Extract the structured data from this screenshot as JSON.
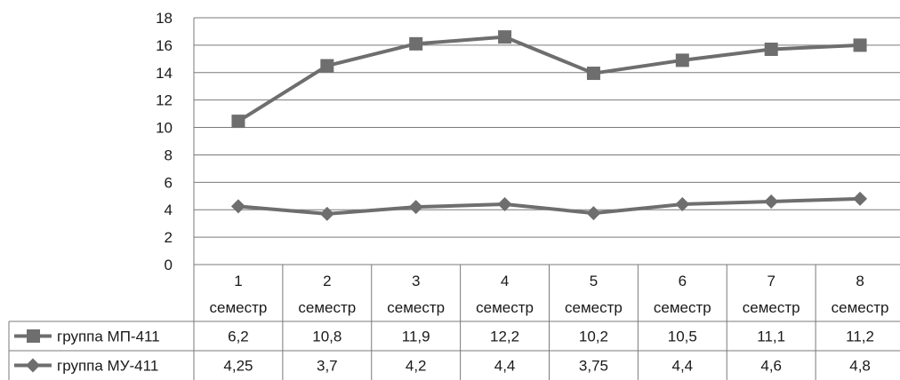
{
  "chart_data": {
    "type": "line",
    "categories": [
      [
        "1",
        "семестр"
      ],
      [
        "2",
        "семестр"
      ],
      [
        "3",
        "семестр"
      ],
      [
        "4",
        "семестр"
      ],
      [
        "5",
        "семестр"
      ],
      [
        "6",
        "семестр"
      ],
      [
        "7",
        "семестр"
      ],
      [
        "8",
        "семестр"
      ]
    ],
    "ylim": [
      0,
      18
    ],
    "yticks": [
      "0",
      "2",
      "4",
      "6",
      "8",
      "10",
      "12",
      "14",
      "16",
      "18"
    ],
    "grid": true,
    "series": [
      {
        "name": "группа МП-411",
        "marker": "square",
        "color": "#6e6e6e",
        "values": [
          10.45,
          14.5,
          16.1,
          16.6,
          13.95,
          14.9,
          15.7,
          16.0
        ],
        "table_values": [
          "6,2",
          "10,8",
          "11,9",
          "12,2",
          "10,2",
          "10,5",
          "11,1",
          "11,2"
        ]
      },
      {
        "name": "группа МУ-411",
        "marker": "diamond",
        "color": "#6e6e6e",
        "values": [
          4.25,
          3.7,
          4.2,
          4.4,
          3.75,
          4.4,
          4.6,
          4.8
        ],
        "table_values": [
          "4,25",
          "3,7",
          "4,2",
          "4,4",
          "3,75",
          "4,4",
          "4,6",
          "4,8"
        ]
      }
    ],
    "legend": "left-in-data-table"
  }
}
